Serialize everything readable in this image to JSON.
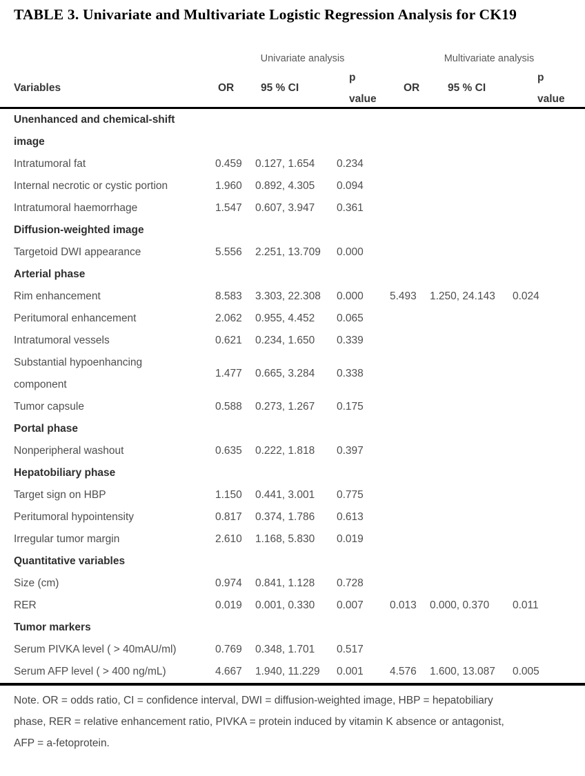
{
  "title": "TABLE 3. Univariate and Multivariate Logistic Regression Analysis for CK19",
  "header": {
    "variables_label": "Variables",
    "groups": [
      {
        "label": "Univariate analysis"
      },
      {
        "label": "Multivariate analysis"
      }
    ],
    "columns": [
      "OR",
      "95 % CI",
      "p\nvalue",
      "OR",
      "95 % CI",
      "p\nvalue"
    ]
  },
  "rows": [
    {
      "type": "section",
      "label": "Unenhanced and chemical-shift\nimage"
    },
    {
      "type": "data",
      "label": "Intratumoral fat",
      "u_or": "0.459",
      "u_ci": "0.127, 1.654",
      "u_p": "0.234",
      "m_or": "",
      "m_ci": "",
      "m_p": ""
    },
    {
      "type": "data",
      "label": "Internal necrotic or cystic portion",
      "u_or": "1.960",
      "u_ci": "0.892, 4.305",
      "u_p": "0.094",
      "m_or": "",
      "m_ci": "",
      "m_p": ""
    },
    {
      "type": "data",
      "label": "Intratumoral haemorrhage",
      "u_or": "1.547",
      "u_ci": "0.607, 3.947",
      "u_p": "0.361",
      "m_or": "",
      "m_ci": "",
      "m_p": ""
    },
    {
      "type": "section",
      "label": "Diffusion-weighted image"
    },
    {
      "type": "data",
      "label": "Targetoid DWI appearance",
      "u_or": "5.556",
      "u_ci": "2.251, 13.709",
      "u_p": "0.000",
      "m_or": "",
      "m_ci": "",
      "m_p": ""
    },
    {
      "type": "section",
      "label": "Arterial phase"
    },
    {
      "type": "data",
      "label": "Rim enhancement",
      "u_or": "8.583",
      "u_ci": "3.303, 22.308",
      "u_p": "0.000",
      "m_or": "5.493",
      "m_ci": "1.250, 24.143",
      "m_p": "0.024"
    },
    {
      "type": "data",
      "label": "Peritumoral enhancement",
      "u_or": "2.062",
      "u_ci": "0.955, 4.452",
      "u_p": "0.065",
      "m_or": "",
      "m_ci": "",
      "m_p": ""
    },
    {
      "type": "data",
      "label": "Intratumoral vessels",
      "u_or": "0.621",
      "u_ci": "0.234, 1.650",
      "u_p": "0.339",
      "m_or": "",
      "m_ci": "",
      "m_p": ""
    },
    {
      "type": "data",
      "label": "Substantial hypoenhancing\ncomponent",
      "u_or": "1.477",
      "u_ci": "0.665, 3.284",
      "u_p": "0.338",
      "m_or": "",
      "m_ci": "",
      "m_p": ""
    },
    {
      "type": "data",
      "label": "Tumor capsule",
      "u_or": "0.588",
      "u_ci": "0.273, 1.267",
      "u_p": "0.175",
      "m_or": "",
      "m_ci": "",
      "m_p": ""
    },
    {
      "type": "section",
      "label": "Portal phase"
    },
    {
      "type": "data",
      "label": "Nonperipheral washout",
      "u_or": "0.635",
      "u_ci": "0.222, 1.818",
      "u_p": "0.397",
      "m_or": "",
      "m_ci": "",
      "m_p": ""
    },
    {
      "type": "section",
      "label": "Hepatobiliary phase"
    },
    {
      "type": "data",
      "label": "Target sign on HBP",
      "u_or": "1.150",
      "u_ci": "0.441, 3.001",
      "u_p": "0.775",
      "m_or": "",
      "m_ci": "",
      "m_p": ""
    },
    {
      "type": "data",
      "label": "Peritumoral hypointensity",
      "u_or": "0.817",
      "u_ci": "0.374, 1.786",
      "u_p": "0.613",
      "m_or": "",
      "m_ci": "",
      "m_p": ""
    },
    {
      "type": "data",
      "label": "Irregular tumor margin",
      "u_or": "2.610",
      "u_ci": "1.168, 5.830",
      "u_p": "0.019",
      "m_or": "",
      "m_ci": "",
      "m_p": ""
    },
    {
      "type": "section",
      "label": "Quantitative variables"
    },
    {
      "type": "data",
      "label": "Size (cm)",
      "u_or": "0.974",
      "u_ci": "0.841, 1.128",
      "u_p": "0.728",
      "m_or": "",
      "m_ci": "",
      "m_p": ""
    },
    {
      "type": "data",
      "label": "RER",
      "u_or": "0.019",
      "u_ci": "0.001, 0.330",
      "u_p": "0.007",
      "m_or": "0.013",
      "m_ci": "0.000, 0.370",
      "m_p": "0.011"
    },
    {
      "type": "section",
      "label": "Tumor markers"
    },
    {
      "type": "data",
      "label": "Serum PIVKA level ( > 40mAU/ml)",
      "u_or": "0.769",
      "u_ci": "0.348, 1.701",
      "u_p": "0.517",
      "m_or": "",
      "m_ci": "",
      "m_p": ""
    },
    {
      "type": "data",
      "label": "Serum AFP level ( >  400 ng/mL)",
      "u_or": "4.667",
      "u_ci": "1.940, 11.229",
      "u_p": "0.001",
      "m_or": "4.576",
      "m_ci": "1.600, 13.087",
      "m_p": "0.005"
    }
  ],
  "note": "Note. OR = odds ratio, CI = confidence interval, DWI = diffusion-weighted image, HBP = hepatobiliary\nphase, RER = relative enhancement ratio, PIVKA = protein induced by vitamin K absence or antagonist,\nAFP = a-fetoprotein.",
  "colors": {
    "rule": "#000000",
    "title_text": "#000000",
    "body_text": "#4e4e4e",
    "section_text": "#2f2f2f",
    "group_header_text": "#595959",
    "background": "#ffffff"
  }
}
